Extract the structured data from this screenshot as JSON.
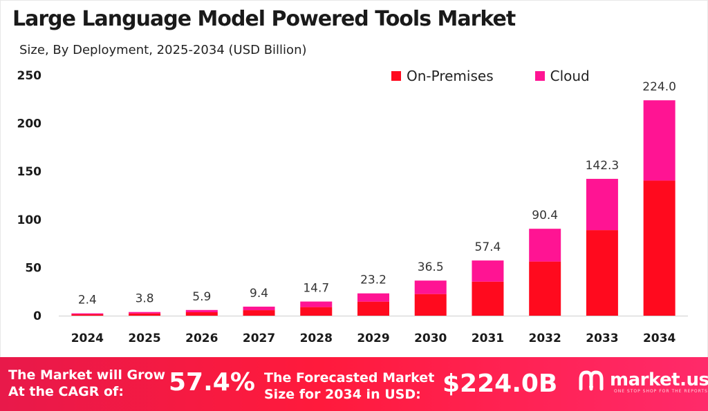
{
  "title": "Large Language Model Powered Tools Market",
  "subtitle": "Size, By Deployment, 2025-2034 (USD Billion)",
  "colors": {
    "on_premises": "#ff0a1e",
    "cloud": "#ff1493",
    "banner": "#ff1a3c"
  },
  "legend": [
    {
      "label": "On-Premises",
      "color": "#ff0a1e"
    },
    {
      "label": "Cloud",
      "color": "#ff1493"
    }
  ],
  "chart_data": {
    "type": "bar",
    "stacked": true,
    "categories": [
      "2024",
      "2025",
      "2026",
      "2027",
      "2028",
      "2029",
      "2030",
      "2031",
      "2032",
      "2033",
      "2034"
    ],
    "series": [
      {
        "name": "On-Premises",
        "values": [
          1.4,
          2.3,
          3.6,
          5.7,
          8.9,
          14.6,
          22.5,
          35.4,
          56.3,
          89.0,
          140.5
        ]
      },
      {
        "name": "Cloud",
        "values": [
          1.0,
          1.5,
          2.3,
          3.7,
          5.8,
          8.6,
          14.0,
          22.0,
          34.1,
          53.3,
          83.5
        ]
      }
    ],
    "totals": [
      "2.4",
      "3.8",
      "5.9",
      "9.4",
      "14.7",
      "23.2",
      "36.5",
      "57.4",
      "90.4",
      "142.3",
      "224.0"
    ],
    "ylim": [
      0,
      250
    ],
    "yticks": [
      0,
      50,
      100,
      150,
      200,
      250
    ],
    "grid": false,
    "legend_position": "top-right"
  },
  "banner": {
    "cagr_label_line1": "The Market will Grow",
    "cagr_label_line2": "At the CAGR of:",
    "cagr_value": "57.4%",
    "forecast_label_line1": "The Forecasted Market",
    "forecast_label_line2": "Size for 2034 in USD:",
    "forecast_value": "$224.0B",
    "brand_name": "market.us",
    "brand_tagline": "ONE STOP SHOP FOR THE REPORTS",
    "brand_icon": "market-us-logo-icon"
  }
}
